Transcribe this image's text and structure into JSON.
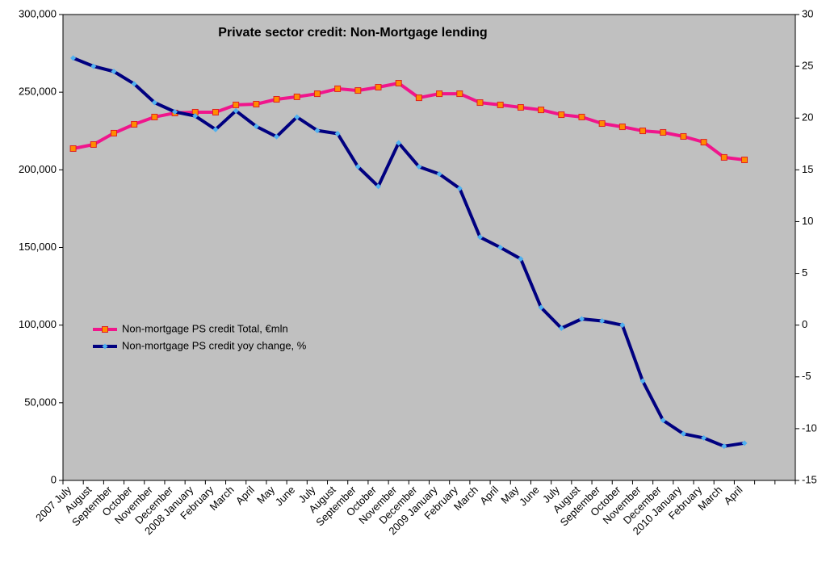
{
  "chart_data": {
    "type": "line",
    "title": "Private sector credit: Non-Mortgage lending",
    "categories": [
      "2007 July",
      "August",
      "September",
      "October",
      "November",
      "December",
      "2008 January",
      "February",
      "March",
      "April",
      "May",
      "June",
      "July",
      "August",
      "September",
      "October",
      "November",
      "December",
      "2009 January",
      "February",
      "March",
      "April",
      "May",
      "June",
      "July",
      "August",
      "September",
      "October",
      "November",
      "December",
      "2010 January",
      "February",
      "March",
      "April",
      null,
      null
    ],
    "series": [
      {
        "name": "Non-mortgage PS credit Total, €mln",
        "color": "#f0158c",
        "marker_color": "#ff8c00",
        "axis": "y",
        "values": [
          213700,
          216300,
          223600,
          229300,
          234000,
          236600,
          237100,
          237100,
          241800,
          242300,
          245400,
          247000,
          249000,
          252200,
          251100,
          253200,
          255800,
          246400,
          249000,
          249000,
          243300,
          241800,
          240200,
          238600,
          235500,
          234000,
          229800,
          227700,
          225100,
          224100,
          221500,
          217800,
          208000,
          206400,
          null,
          null
        ]
      },
      {
        "name": "Non-mortgage PS credit yoy change, %",
        "color": "#000080",
        "marker_color": "#4fb0f0",
        "axis": "y2",
        "values": [
          25.8,
          25.0,
          24.5,
          23.3,
          21.5,
          20.6,
          20.2,
          18.9,
          20.7,
          19.2,
          18.2,
          20.1,
          18.8,
          18.5,
          15.3,
          13.4,
          17.6,
          15.3,
          14.6,
          13.2,
          8.5,
          7.5,
          6.4,
          1.7,
          -0.3,
          0.6,
          0.4,
          0.0,
          -5.4,
          -9.2,
          -10.5,
          -10.9,
          -11.7,
          -11.4,
          null,
          null
        ]
      }
    ],
    "ylim": [
      0,
      300000
    ],
    "yticks": [
      {
        "value": 0,
        "label": "0"
      },
      {
        "value": 50000,
        "label": "50,000"
      },
      {
        "value": 100000,
        "label": "100,000"
      },
      {
        "value": 150000,
        "label": "150,000"
      },
      {
        "value": 200000,
        "label": "200,000"
      },
      {
        "value": 250000,
        "label": "250,000"
      },
      {
        "value": 300000,
        "label": "300,000"
      }
    ],
    "y2lim": [
      -15,
      30
    ],
    "y2ticks": [
      -15,
      -10,
      -5,
      0,
      5,
      10,
      15,
      20,
      25,
      30
    ],
    "background": "#c0c0c0",
    "grid": false,
    "legend": "left"
  }
}
